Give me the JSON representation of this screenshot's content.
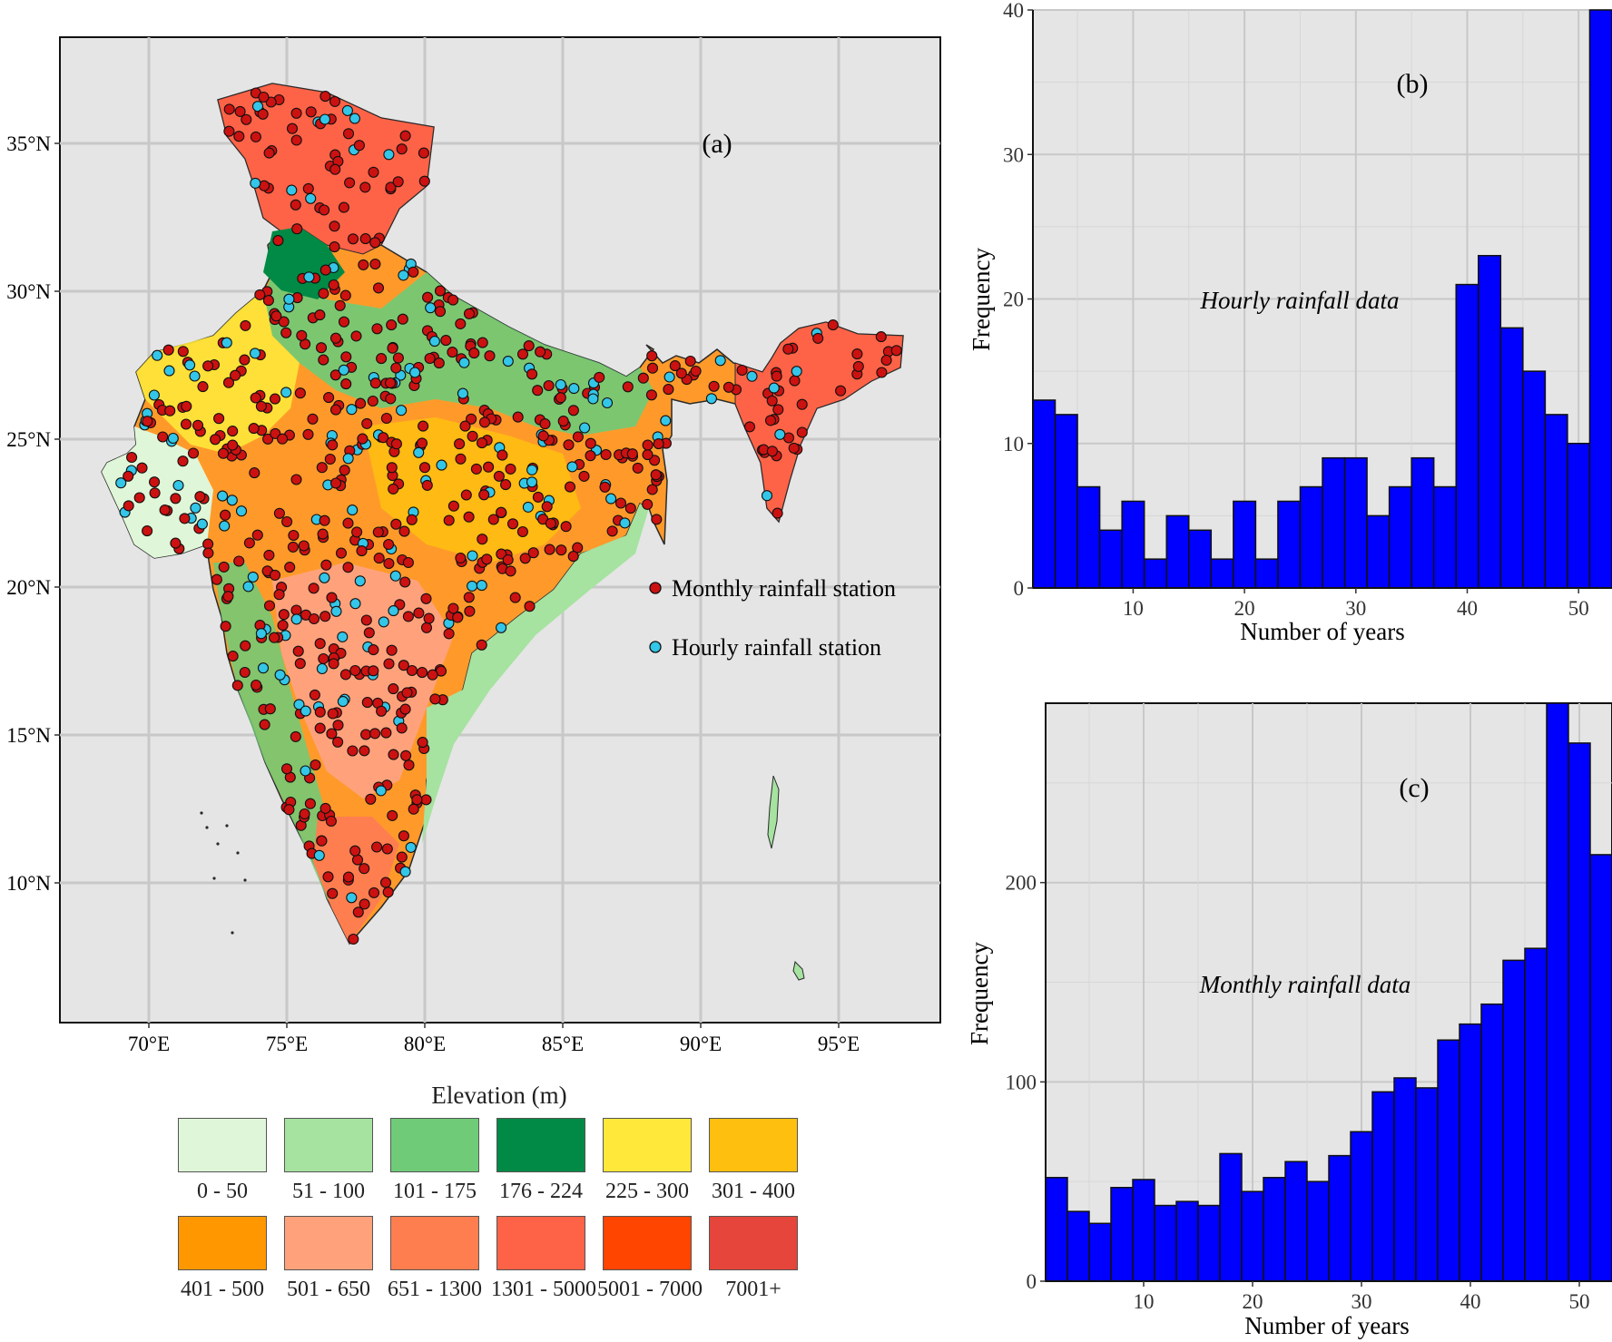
{
  "colors": {
    "panel_bg": "#e5e5e5",
    "grid": "#c8c8c8",
    "bar_fill": "#0000ff",
    "monthly_station": "#cc1111",
    "hourly_station": "#33c6e8"
  },
  "map": {
    "panel_label": "(a)",
    "lat_labels": [
      "35°N",
      "30°N",
      "25°N",
      "20°N",
      "15°N",
      "10°N"
    ],
    "lon_labels": [
      "70°E",
      "75°E",
      "80°E",
      "85°E",
      "90°E",
      "95°E"
    ],
    "station_legend": [
      {
        "label": "Monthly rainfall station",
        "color": "#cc1111"
      },
      {
        "label": "Hourly rainfall station",
        "color": "#33c6e8"
      }
    ]
  },
  "elevation_legend": {
    "title": "Elevation (m)",
    "classes": [
      {
        "label": "0 - 50",
        "color": "#e0f6d8"
      },
      {
        "label": "51 - 100",
        "color": "#a6e2a0"
      },
      {
        "label": "101 - 175",
        "color": "#6fcb78"
      },
      {
        "label": "176 - 224",
        "color": "#008a45"
      },
      {
        "label": "225 - 300",
        "color": "#ffe83a"
      },
      {
        "label": "301 - 400",
        "color": "#ffbf0f"
      },
      {
        "label": "401 - 500",
        "color": "#ff9800"
      },
      {
        "label": "501 - 650",
        "color": "#ffa27c"
      },
      {
        "label": "651 - 1300",
        "color": "#ff7e50"
      },
      {
        "label": "1301 - 5000",
        "color": "#ff6347"
      },
      {
        "label": "5001 - 7000",
        "color": "#ff4500"
      },
      {
        "label": "7001+",
        "color": "#e5453a"
      }
    ]
  },
  "chart_data": [
    {
      "type": "bar",
      "panel_label": "(b)",
      "annotation": "Hourly rainfall data",
      "xlabel": "Number of years",
      "ylabel": "Frequency",
      "xlim": [
        1,
        53
      ],
      "ylim": [
        0,
        40
      ],
      "xticks": [
        10,
        20,
        30,
        40,
        50
      ],
      "yticks": [
        0,
        10,
        20,
        30,
        40
      ],
      "bin_width": 2,
      "bin_starts": [
        1,
        3,
        5,
        7,
        9,
        11,
        13,
        15,
        17,
        19,
        21,
        23,
        25,
        27,
        29,
        31,
        33,
        35,
        37,
        39,
        41,
        43,
        45,
        47,
        49,
        51
      ],
      "values": [
        13,
        12,
        7,
        4,
        6,
        2,
        5,
        4,
        2,
        6,
        2,
        6,
        7,
        9,
        9,
        5,
        7,
        9,
        7,
        21,
        23,
        18,
        15,
        12,
        10,
        40
      ]
    },
    {
      "type": "bar",
      "panel_label": "(c)",
      "annotation": "Monthly rainfall data",
      "xlabel": "Number of years",
      "ylabel": "Frequency",
      "xlim": [
        1,
        53
      ],
      "ylim": [
        0,
        290
      ],
      "xticks": [
        10,
        20,
        30,
        40,
        50
      ],
      "yticks": [
        0,
        100,
        200
      ],
      "bin_width": 2,
      "bin_starts": [
        1,
        3,
        5,
        7,
        9,
        11,
        13,
        15,
        17,
        19,
        21,
        23,
        25,
        27,
        29,
        31,
        33,
        35,
        37,
        39,
        41,
        43,
        45,
        47,
        49,
        51
      ],
      "values": [
        52,
        35,
        29,
        47,
        51,
        38,
        40,
        38,
        64,
        45,
        52,
        60,
        50,
        63,
        75,
        95,
        102,
        97,
        121,
        129,
        139,
        161,
        167,
        290,
        270,
        214
      ]
    }
  ]
}
